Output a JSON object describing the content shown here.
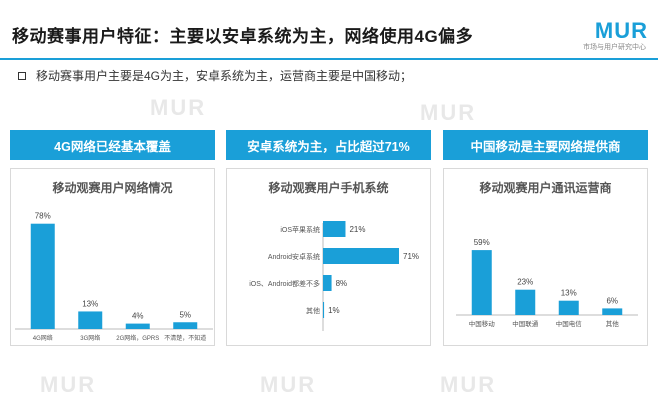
{
  "header": {
    "title": "移动赛事用户特征：主要以安卓系统为主，网络使用4G偏多",
    "logo_text": "MUR",
    "logo_subtitle": "市场与用户研究中心"
  },
  "bullet": "移动赛事用户主要是4G为主，安卓系统为主，运营商主要是中国移动；",
  "banners": [
    "4G网络已经基本覆盖",
    "安卓系统为主，占比超过71%",
    "中国移动是主要网络提供商"
  ],
  "watermark": "MUR",
  "colors": {
    "accent": "#1a9fd8",
    "bar": "#1a9fd8"
  },
  "chart_data": [
    {
      "type": "bar",
      "title": "移动观赛用户网络情况",
      "categories": [
        "4G网络",
        "3G网络",
        "2G网络，GPRS",
        "不清楚，不知道"
      ],
      "values": [
        78,
        13,
        4,
        5
      ],
      "value_labels": [
        "78%",
        "13%",
        "4%",
        "5%"
      ],
      "ylim": [
        0,
        80
      ]
    },
    {
      "type": "bar",
      "orientation": "horizontal",
      "title": "移动观赛用户手机系统",
      "categories": [
        "iOS苹果系统",
        "Android安卓系统",
        "iOS、Android都差不多",
        "其他"
      ],
      "values": [
        21,
        71,
        8,
        1
      ],
      "value_labels": [
        "21%",
        "71%",
        "8%",
        "1%"
      ],
      "xlim": [
        0,
        71
      ]
    },
    {
      "type": "bar",
      "title": "移动观赛用户通讯运营商",
      "categories": [
        "中国移动",
        "中国联通",
        "中国电信",
        "其他"
      ],
      "values": [
        59,
        23,
        13,
        6
      ],
      "value_labels": [
        "59%",
        "23%",
        "13%",
        "6%"
      ],
      "ylim": [
        0,
        60
      ]
    }
  ]
}
